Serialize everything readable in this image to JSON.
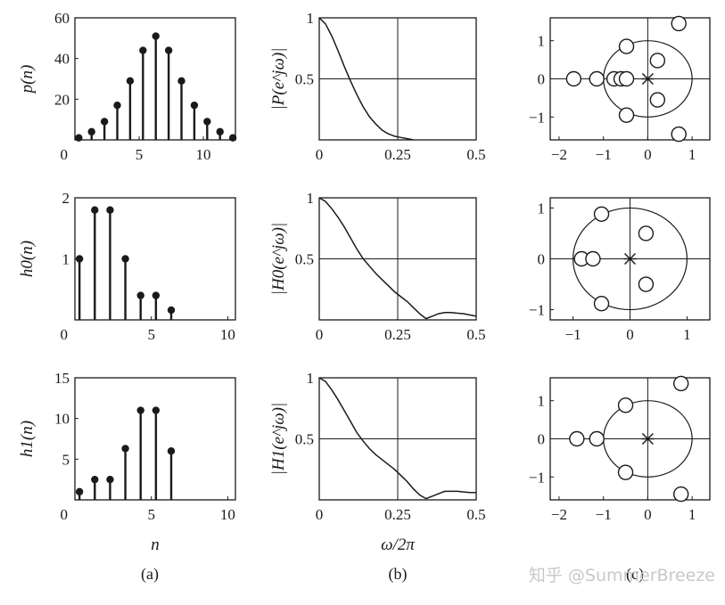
{
  "chart_data": [
    {
      "id": "p",
      "type": "stem",
      "ylabel": "p(n)",
      "xlim": [
        0,
        12.5
      ],
      "ylim": [
        0,
        60
      ],
      "xticks": [
        "0",
        "5",
        "10"
      ],
      "xtick_values": [
        0,
        5,
        10
      ],
      "yticks": [
        "20",
        "40",
        "60"
      ],
      "ytick_values": [
        20,
        40,
        60
      ],
      "x": [
        0,
        1,
        2,
        3,
        4,
        5,
        6,
        7,
        8,
        9,
        10,
        11,
        12
      ],
      "y": [
        1,
        4,
        9,
        17,
        29,
        44,
        51,
        44,
        29,
        17,
        9,
        4,
        1
      ],
      "corner_label": "0"
    },
    {
      "id": "h0",
      "type": "stem",
      "ylabel": "h0(n)",
      "xlim": [
        0,
        10.5
      ],
      "ylim": [
        0,
        2
      ],
      "xticks": [
        "0",
        "5",
        "10"
      ],
      "xtick_values": [
        0,
        5,
        10
      ],
      "yticks": [
        "1",
        "2"
      ],
      "ytick_values": [
        1,
        2
      ],
      "x": [
        0,
        1,
        2,
        3,
        4,
        5,
        6
      ],
      "y": [
        1,
        1.8,
        1.8,
        1,
        0.4,
        0.4,
        0.16
      ],
      "corner_label": "0"
    },
    {
      "id": "h1",
      "type": "stem",
      "ylabel": "h1(n)",
      "xlim": [
        0,
        10.5
      ],
      "ylim": [
        0,
        15
      ],
      "xticks": [
        "0",
        "5",
        "10"
      ],
      "xtick_values": [
        0,
        5,
        10
      ],
      "yticks": [
        "5",
        "10",
        "15"
      ],
      "ytick_values": [
        5,
        10,
        15
      ],
      "x": [
        0,
        1,
        2,
        3,
        4,
        5,
        6
      ],
      "y": [
        1,
        2.5,
        2.5,
        6.3,
        11,
        11,
        6
      ],
      "corner_label": "0",
      "xlabel": "n"
    },
    {
      "id": "P_mag",
      "type": "line",
      "ylabel": "|P(e^jω)|",
      "xlim": [
        0,
        0.5
      ],
      "ylim": [
        0,
        1
      ],
      "xticks": [
        "0",
        "0.25",
        "0.5"
      ],
      "xtick_values": [
        0,
        0.25,
        0.5
      ],
      "yticks": [
        "0.5",
        "1"
      ],
      "ytick_values": [
        0.5,
        1
      ],
      "grid": true,
      "x": [
        0,
        0.02,
        0.04,
        0.06,
        0.08,
        0.1,
        0.12,
        0.14,
        0.16,
        0.18,
        0.2,
        0.22,
        0.24,
        0.26,
        0.28,
        0.3
      ],
      "y": [
        1,
        0.95,
        0.85,
        0.73,
        0.6,
        0.48,
        0.37,
        0.27,
        0.19,
        0.13,
        0.08,
        0.05,
        0.03,
        0.02,
        0.01,
        0
      ]
    },
    {
      "id": "H0_mag",
      "type": "line",
      "ylabel": "|H0(e^jω)|",
      "xlim": [
        0,
        0.5
      ],
      "ylim": [
        0,
        1
      ],
      "xticks": [
        "0",
        "0.25",
        "0.5"
      ],
      "xtick_values": [
        0,
        0.25,
        0.5
      ],
      "yticks": [
        "0.5",
        "1"
      ],
      "ytick_values": [
        0.5,
        1
      ],
      "grid": true,
      "x": [
        0,
        0.02,
        0.04,
        0.06,
        0.08,
        0.1,
        0.12,
        0.14,
        0.16,
        0.18,
        0.2,
        0.22,
        0.24,
        0.26,
        0.28,
        0.3,
        0.32,
        0.34,
        0.36,
        0.38,
        0.4,
        0.42,
        0.44,
        0.46,
        0.48,
        0.5
      ],
      "y": [
        1,
        0.97,
        0.91,
        0.84,
        0.76,
        0.67,
        0.58,
        0.5,
        0.44,
        0.38,
        0.33,
        0.28,
        0.23,
        0.19,
        0.15,
        0.1,
        0.05,
        0.01,
        0.03,
        0.05,
        0.06,
        0.06,
        0.055,
        0.05,
        0.04,
        0.03
      ]
    },
    {
      "id": "H1_mag",
      "type": "line",
      "ylabel": "|H1(e^jω)|",
      "xlim": [
        0,
        0.5
      ],
      "ylim": [
        0,
        1
      ],
      "xticks": [
        "0",
        "0.25",
        "0.5"
      ],
      "xtick_values": [
        0,
        0.25,
        0.5
      ],
      "yticks": [
        "0.5",
        "1"
      ],
      "ytick_values": [
        0.5,
        1
      ],
      "grid": true,
      "xlabel": "ω/2π",
      "x": [
        0,
        0.02,
        0.04,
        0.06,
        0.08,
        0.1,
        0.12,
        0.14,
        0.16,
        0.18,
        0.2,
        0.22,
        0.24,
        0.26,
        0.28,
        0.3,
        0.32,
        0.34,
        0.36,
        0.38,
        0.4,
        0.42,
        0.44,
        0.46,
        0.48,
        0.5
      ],
      "y": [
        1,
        0.97,
        0.9,
        0.82,
        0.73,
        0.64,
        0.55,
        0.48,
        0.42,
        0.37,
        0.33,
        0.29,
        0.25,
        0.2,
        0.15,
        0.09,
        0.04,
        0.01,
        0.03,
        0.05,
        0.07,
        0.07,
        0.07,
        0.065,
        0.06,
        0.06
      ]
    },
    {
      "id": "pz_p",
      "type": "pole-zero",
      "xlim": [
        -2.2,
        1.4
      ],
      "ylim": [
        -1.6,
        1.6
      ],
      "xticks": [
        "−2",
        "−1",
        "0",
        "1"
      ],
      "xtick_values": [
        -2,
        -1,
        0,
        1
      ],
      "yticks": [
        "1",
        "0",
        "−1"
      ],
      "ytick_values": [
        1,
        0,
        -1
      ],
      "unit_circle": true,
      "poles": [
        [
          0,
          0
        ]
      ],
      "zeros": [
        [
          -1.67,
          0
        ],
        [
          -1.15,
          0
        ],
        [
          -0.76,
          0
        ],
        [
          -0.6,
          0
        ],
        [
          -0.48,
          0
        ],
        [
          -0.48,
          0.85
        ],
        [
          -0.48,
          -0.95
        ],
        [
          0.22,
          0.48
        ],
        [
          0.22,
          -0.55
        ],
        [
          0.7,
          1.45
        ],
        [
          0.7,
          -1.45
        ]
      ]
    },
    {
      "id": "pz_h0",
      "type": "pole-zero",
      "xlim": [
        -1.4,
        1.4
      ],
      "ylim": [
        -1.2,
        1.2
      ],
      "xticks": [
        "−1",
        "0",
        "1"
      ],
      "xtick_values": [
        -1,
        0,
        1
      ],
      "yticks": [
        "1",
        "0",
        "−1"
      ],
      "ytick_values": [
        1,
        0,
        -1
      ],
      "unit_circle": true,
      "poles": [
        [
          0,
          0
        ]
      ],
      "zeros": [
        [
          -0.85,
          0
        ],
        [
          -0.65,
          0
        ],
        [
          -0.5,
          0.88
        ],
        [
          -0.5,
          -0.88
        ],
        [
          0.28,
          0.5
        ],
        [
          0.28,
          -0.5
        ]
      ]
    },
    {
      "id": "pz_h1",
      "type": "pole-zero",
      "xlim": [
        -2.2,
        1.4
      ],
      "ylim": [
        -1.6,
        1.6
      ],
      "xticks": [
        "−2",
        "−1",
        "0",
        "1"
      ],
      "xtick_values": [
        -2,
        -1,
        0,
        1
      ],
      "yticks": [
        "1",
        "0",
        "−1"
      ],
      "ytick_values": [
        1,
        0,
        -1
      ],
      "unit_circle": true,
      "poles": [
        [
          0,
          0
        ]
      ],
      "zeros": [
        [
          -1.6,
          0
        ],
        [
          -1.15,
          0
        ],
        [
          -0.5,
          0.88
        ],
        [
          -0.5,
          -0.88
        ],
        [
          0.75,
          1.45
        ],
        [
          0.75,
          -1.45
        ]
      ]
    }
  ],
  "captions": [
    "(a)",
    "(b)",
    "(c)"
  ],
  "watermark": "知乎 @SummerBreeze"
}
